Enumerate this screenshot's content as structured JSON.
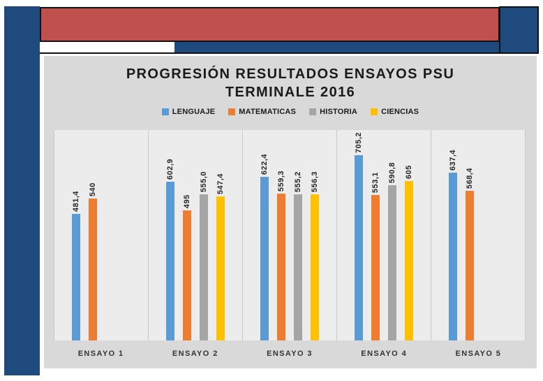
{
  "decor": {
    "accent_blue": "#1F4A7D",
    "banner_red": "#C0504D",
    "border_black": "#111111",
    "panel_gray": "#D9D9D9",
    "plot_gray": "#ECECEC"
  },
  "chart_data": {
    "type": "bar",
    "title": "PROGRESIÓN RESULTADOS ENSAYOS PSU TERMINALE 2016",
    "title_lines": [
      "PROGRESIÓN RESULTADOS ENSAYOS PSU",
      "TERMINALE 2016"
    ],
    "categories": [
      "ENSAYO 1",
      "ENSAYO 2",
      "ENSAYO 3",
      "ENSAYO 4",
      "ENSAYO 5"
    ],
    "series": [
      {
        "name": "LENGUAJE",
        "color": "#5B9BD5",
        "values": [
          481.4,
          602.9,
          622.4,
          705.2,
          637.4
        ],
        "labels": [
          "481,4",
          "602,9",
          "622,4",
          "705,2",
          "637,4"
        ]
      },
      {
        "name": "MATEMATICAS",
        "color": "#ED7D31",
        "values": [
          540,
          495,
          559.3,
          553.1,
          568.4
        ],
        "labels": [
          "540",
          "495",
          "559,3",
          "553,1",
          "568,4"
        ]
      },
      {
        "name": "HISTORIA",
        "color": "#A5A5A5",
        "values": [
          null,
          555.0,
          555.2,
          590.8,
          null
        ],
        "labels": [
          null,
          "555,0",
          "555,2",
          "590,8",
          null
        ]
      },
      {
        "name": "CIENCIAS",
        "color": "#FFC000",
        "values": [
          null,
          547.4,
          556.3,
          605,
          null
        ],
        "labels": [
          null,
          "547,4",
          "556,3",
          "605",
          null
        ]
      }
    ],
    "ylim": [
      0,
      800
    ],
    "grid": false,
    "y_axis_visible": false,
    "legend_position": "top",
    "bar_value_labels_rotated": true
  }
}
